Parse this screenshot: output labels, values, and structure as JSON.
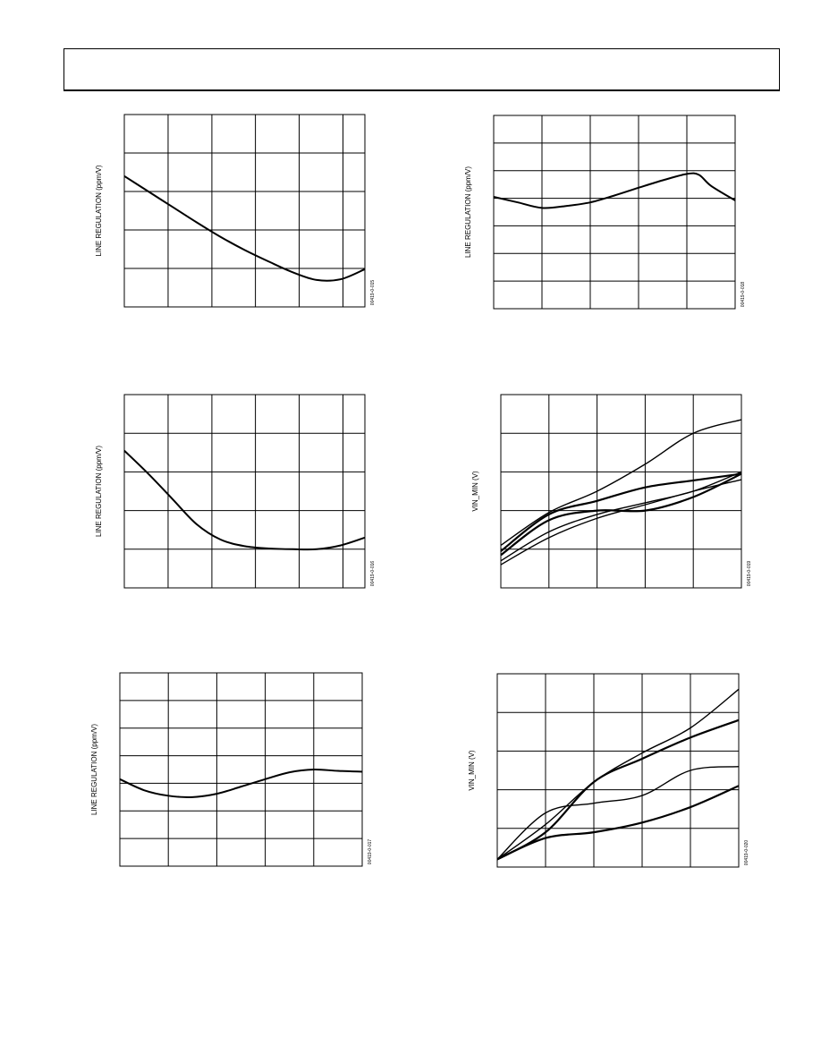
{
  "page": {
    "header_title": ""
  },
  "chart_data": [
    {
      "id": "fig-15",
      "type": "line",
      "ylabel": "LINE REGULATION (ppm/V)",
      "figure_code": "00419-0-015",
      "x_grid_ratios": [
        0.182,
        0.364,
        0.545,
        0.727,
        0.909
      ],
      "y_divisions": 5,
      "series": [
        {
          "x": [
            0.0,
            0.1,
            0.2,
            0.3,
            0.4,
            0.5,
            0.6,
            0.7,
            0.8,
            0.9,
            1.0
          ],
          "y": [
            3.4,
            3.0,
            2.6,
            2.2,
            1.82,
            1.48,
            1.18,
            0.9,
            0.7,
            0.72,
            0.98
          ]
        }
      ]
    },
    {
      "id": "fig-18",
      "type": "line",
      "ylabel": "LINE REGULATION (ppm/V)",
      "figure_code": "00419-0-018",
      "x_grid_ratios": [
        0.2,
        0.4,
        0.6,
        0.8
      ],
      "y_divisions": 7,
      "series": [
        {
          "x": [
            0.0,
            0.1,
            0.2,
            0.3,
            0.4,
            0.5,
            0.6,
            0.7,
            0.8,
            0.85,
            0.9,
            1.0
          ],
          "y": [
            4.05,
            3.85,
            3.65,
            3.72,
            3.85,
            4.1,
            4.38,
            4.65,
            4.88,
            4.85,
            4.45,
            3.92
          ]
        }
      ]
    },
    {
      "id": "fig-16",
      "type": "line",
      "ylabel": "LINE REGULATION (ppm/V)",
      "figure_code": "00419-0-016",
      "x_grid_ratios": [
        0.182,
        0.364,
        0.545,
        0.727,
        0.909
      ],
      "y_divisions": 5,
      "series": [
        {
          "x": [
            0.0,
            0.1,
            0.2,
            0.3,
            0.4,
            0.5,
            0.6,
            0.7,
            0.8,
            0.9,
            1.0
          ],
          "y": [
            3.55,
            2.95,
            2.3,
            1.65,
            1.25,
            1.08,
            1.02,
            1.0,
            1.0,
            1.1,
            1.3
          ]
        }
      ]
    },
    {
      "id": "fig-19",
      "type": "line",
      "ylabel": "VIN_MIN (V)",
      "figure_code": "00419-0-019",
      "x_grid_ratios": [
        0.2,
        0.4,
        0.6,
        0.8
      ],
      "y_divisions": 5,
      "series": [
        {
          "name": "",
          "x": [
            0,
            0.2,
            0.4,
            0.6,
            0.8,
            1.0
          ],
          "y": [
            1.1,
            1.95,
            2.5,
            3.2,
            4.0,
            4.35
          ]
        },
        {
          "name": "",
          "x": [
            0,
            0.2,
            0.4,
            0.6,
            0.8,
            1.0
          ],
          "y": [
            0.95,
            1.9,
            2.25,
            2.6,
            2.78,
            2.95
          ]
        },
        {
          "name": "",
          "x": [
            0,
            0.2,
            0.4,
            0.6,
            0.8,
            1.0
          ],
          "y": [
            0.7,
            1.45,
            1.9,
            2.2,
            2.5,
            3.0
          ]
        },
        {
          "name": "",
          "x": [
            0,
            0.2,
            0.4,
            0.6,
            0.8,
            1.0
          ],
          "y": [
            0.85,
            1.75,
            2.0,
            2.0,
            2.35,
            2.95
          ]
        },
        {
          "name": "",
          "x": [
            0,
            0.2,
            0.4,
            0.6,
            0.8,
            1.0
          ],
          "y": [
            0.6,
            1.3,
            1.8,
            2.15,
            2.5,
            2.8
          ]
        }
      ]
    },
    {
      "id": "fig-17",
      "type": "line",
      "ylabel": "LINE REGULATION (ppm/V)",
      "figure_code": "00419-0-017",
      "x_grid_ratios": [
        0.2,
        0.4,
        0.6,
        0.8
      ],
      "y_divisions": 7,
      "series": [
        {
          "x": [
            0.0,
            0.1,
            0.2,
            0.3,
            0.4,
            0.5,
            0.6,
            0.7,
            0.8,
            0.9,
            1.0
          ],
          "y": [
            3.15,
            2.75,
            2.55,
            2.5,
            2.62,
            2.88,
            3.15,
            3.4,
            3.5,
            3.45,
            3.42
          ]
        }
      ]
    },
    {
      "id": "fig-20",
      "type": "line",
      "ylabel": "VIN_MIN (V)",
      "figure_code": "00419-0-020",
      "x_grid_ratios": [
        0.2,
        0.4,
        0.6,
        0.8
      ],
      "y_divisions": 5,
      "series": [
        {
          "name": "",
          "x": [
            0,
            0.2,
            0.4,
            0.6,
            0.8,
            1.0
          ],
          "y": [
            0.2,
            1.1,
            2.2,
            2.95,
            3.6,
            4.6
          ]
        },
        {
          "name": "",
          "x": [
            0,
            0.2,
            0.4,
            0.6,
            0.8,
            1.0
          ],
          "y": [
            0.2,
            0.9,
            2.2,
            2.8,
            3.35,
            3.8
          ]
        },
        {
          "name": "",
          "x": [
            0,
            0.2,
            0.4,
            0.6,
            0.8,
            1.0
          ],
          "y": [
            0.2,
            1.4,
            1.65,
            1.85,
            2.5,
            2.6
          ]
        },
        {
          "name": "",
          "x": [
            0,
            0.2,
            0.4,
            0.6,
            0.8,
            1.0
          ],
          "y": [
            0.2,
            0.75,
            0.9,
            1.15,
            1.55,
            2.1
          ]
        }
      ]
    }
  ]
}
